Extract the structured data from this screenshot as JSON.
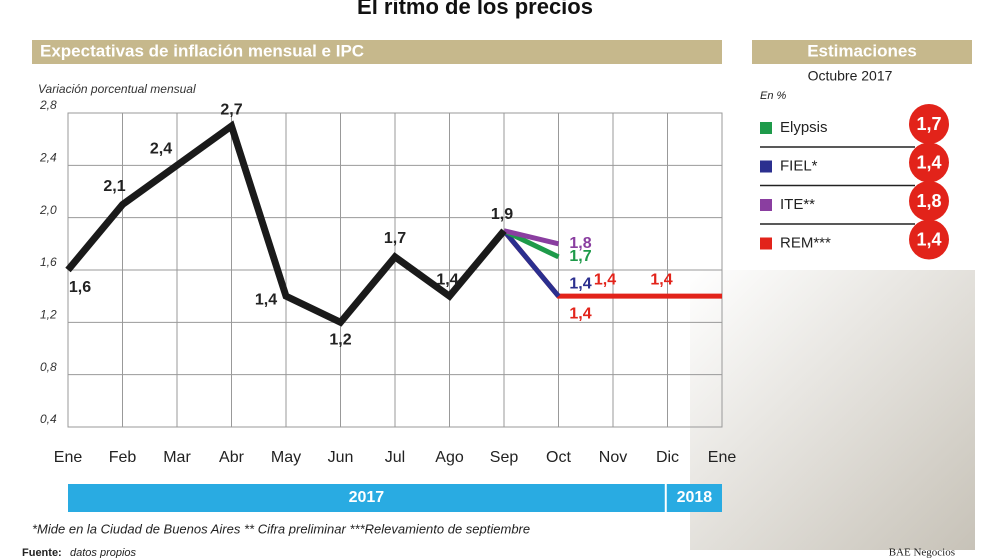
{
  "chart_data": {
    "type": "line",
    "title": "El ritmo de los precios",
    "subtitle": "Expectativas de inflación mensual e IPC",
    "y_label": "Variación porcentual mensual",
    "categories": [
      "Ene",
      "Feb",
      "Mar",
      "Abr",
      "May",
      "Jun",
      "Jul",
      "Ago",
      "Sep",
      "Oct",
      "Nov",
      "Dic",
      "Ene"
    ],
    "years": [
      "2017",
      "2018"
    ],
    "ylim": [
      0.4,
      2.8
    ],
    "yticks": [
      {
        "value": 0.4,
        "label": "0,4"
      },
      {
        "value": 0.8,
        "label": "0,8"
      },
      {
        "value": 1.2,
        "label": "1,2"
      },
      {
        "value": 1.6,
        "label": "1,6"
      },
      {
        "value": 2.0,
        "label": "2,0"
      },
      {
        "value": 2.4,
        "label": "2,4"
      },
      {
        "value": 2.8,
        "label": "2,8"
      }
    ],
    "grid": true,
    "series": [
      {
        "color": "#1a1a1a",
        "values": [
          1.6,
          2.1,
          2.4,
          2.7,
          1.4,
          1.2,
          1.7,
          1.4,
          1.9,
          null,
          null,
          null,
          null
        ],
        "value_labels": [
          "1,6",
          "2,1",
          "2,4",
          "2,7",
          "1,4",
          "1,2",
          "1,7",
          "1,4",
          "1,9",
          null,
          null,
          null,
          null
        ]
      },
      {
        "name": "Elypsis",
        "color": "#1e9a4a",
        "values": [
          null,
          null,
          null,
          null,
          null,
          null,
          null,
          null,
          1.9,
          1.7,
          null,
          null,
          null
        ],
        "value_labels": [
          null,
          null,
          null,
          null,
          null,
          null,
          null,
          null,
          null,
          "1,7",
          null,
          null,
          null
        ]
      },
      {
        "name": "FIEL*",
        "color": "#2b2f8f",
        "values": [
          null,
          null,
          null,
          null,
          null,
          null,
          null,
          null,
          1.9,
          1.4,
          null,
          null,
          null
        ],
        "value_labels": [
          null,
          null,
          null,
          null,
          null,
          null,
          null,
          null,
          null,
          "1,4",
          null,
          null,
          null
        ]
      },
      {
        "name": "ITE**",
        "color": "#8a3ea0",
        "values": [
          null,
          null,
          null,
          null,
          null,
          null,
          null,
          null,
          1.9,
          1.8,
          null,
          null,
          null
        ],
        "value_labels": [
          null,
          null,
          null,
          null,
          null,
          null,
          null,
          null,
          null,
          "1,8",
          null,
          null,
          null
        ]
      },
      {
        "name": "REM***",
        "color": "#e2231a",
        "values": [
          null,
          null,
          null,
          null,
          null,
          null,
          null,
          null,
          1.9,
          1.4,
          1.4,
          1.4,
          1.4
        ],
        "value_labels": [
          null,
          null,
          null,
          null,
          null,
          null,
          null,
          null,
          null,
          "1,4",
          "1,4",
          "1,4",
          null
        ]
      }
    ],
    "legend_title": "Estimaciones",
    "legend_subtitle": "Octubre 2017",
    "legend_unit": "En %",
    "footnote": "*Mide en la Ciudad de Buenos Aires ** Cifra preliminar ***Relevamiento de septiembre",
    "source_label": "Fuente:",
    "source": "datos propios",
    "credit": "BAE Negocios"
  }
}
